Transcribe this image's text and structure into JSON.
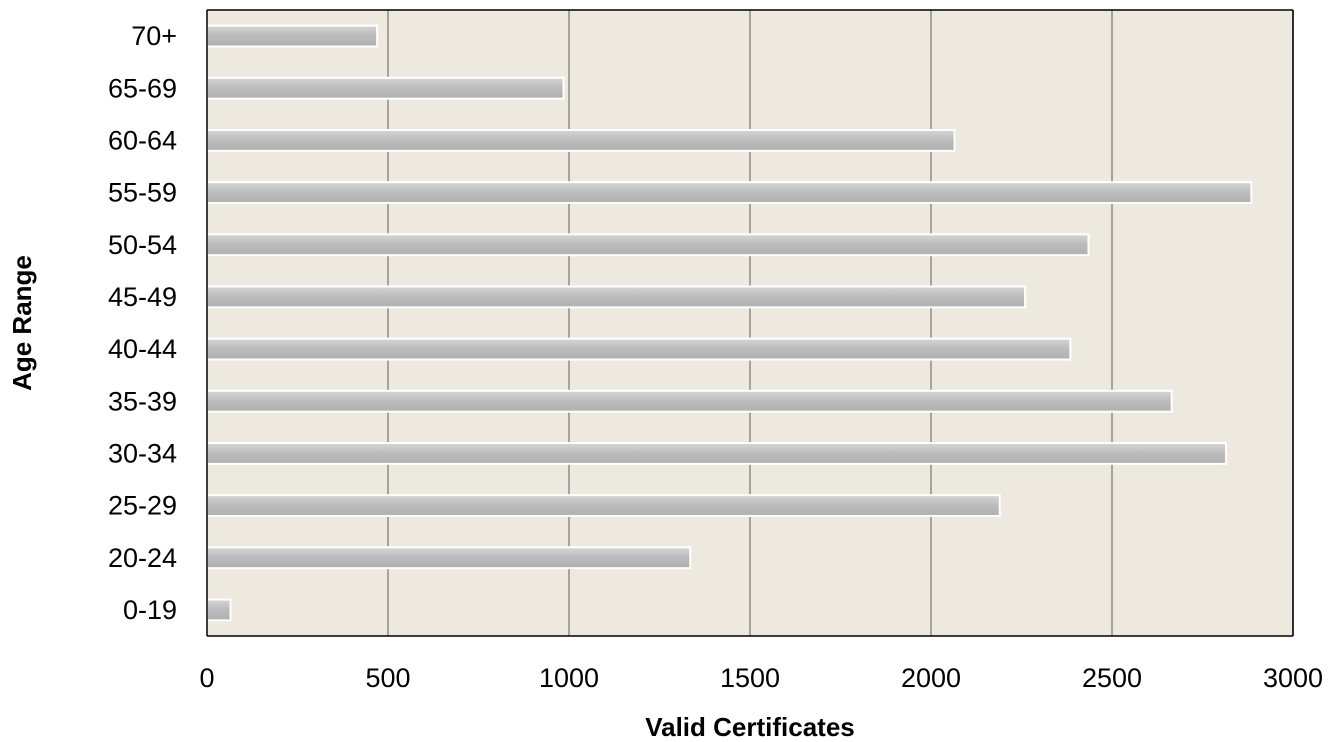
{
  "chart_data": {
    "type": "bar",
    "orientation": "horizontal",
    "title": "",
    "xlabel": "Valid Certificates",
    "ylabel": "Age Range",
    "categories": [
      "0-19",
      "20-24",
      "25-29",
      "30-34",
      "35-39",
      "40-44",
      "45-49",
      "50-54",
      "55-59",
      "60-64",
      "65-69",
      "70+"
    ],
    "values": [
      65,
      1335,
      2190,
      2815,
      2665,
      2385,
      2260,
      2435,
      2885,
      2065,
      985,
      470
    ],
    "xlim": [
      0,
      3000
    ],
    "xticks": [
      "0",
      "500",
      "1000",
      "1500",
      "2000",
      "2500",
      "3000"
    ],
    "grid": "vertical",
    "legend": "none",
    "colors": {
      "plot_background": "#ede9df",
      "bar_fill": "#bdbdbd",
      "bar_highlight": "#ffffff",
      "gridline": "#8c8c8c",
      "axis": "#000000"
    }
  }
}
